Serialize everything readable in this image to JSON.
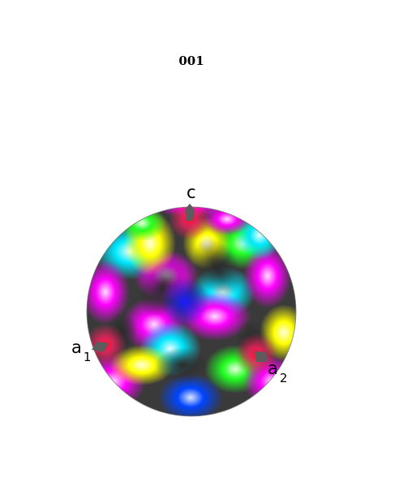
{
  "title": "001",
  "axes": {
    "c": {
      "label": "c",
      "sub": ""
    },
    "a1": {
      "label": "a",
      "sub": "1"
    },
    "a2": {
      "label": "a",
      "sub": "2"
    }
  },
  "colors": {
    "marker": "#5c5c5c",
    "background": "#ffffff"
  }
}
